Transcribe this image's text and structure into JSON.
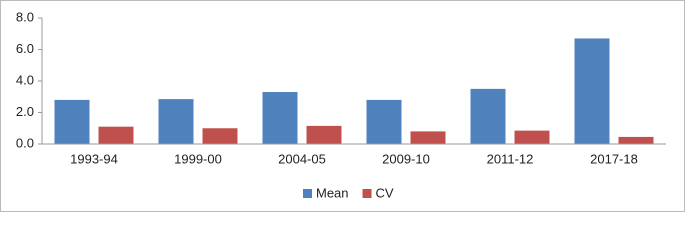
{
  "chart_data": {
    "type": "bar",
    "categories": [
      "1993-94",
      "1999-00",
      "2004-05",
      "2009-10",
      "2011-12",
      "2017-18"
    ],
    "series": [
      {
        "name": "Mean",
        "color": "#4f81bd",
        "values": [
          2.8,
          2.85,
          3.3,
          2.8,
          3.5,
          6.7
        ]
      },
      {
        "name": "CV",
        "color": "#c0504d",
        "values": [
          1.1,
          1.0,
          1.15,
          0.8,
          0.85,
          0.45
        ]
      }
    ],
    "ylim": [
      0,
      8
    ],
    "yticks": [
      {
        "value": 0,
        "label": "0.0"
      },
      {
        "value": 2,
        "label": "2.0"
      },
      {
        "value": 4,
        "label": "4.0"
      },
      {
        "value": 6,
        "label": "6.0"
      },
      {
        "value": 8,
        "label": "8.0"
      }
    ],
    "grid": false,
    "legend": "bottom"
  }
}
